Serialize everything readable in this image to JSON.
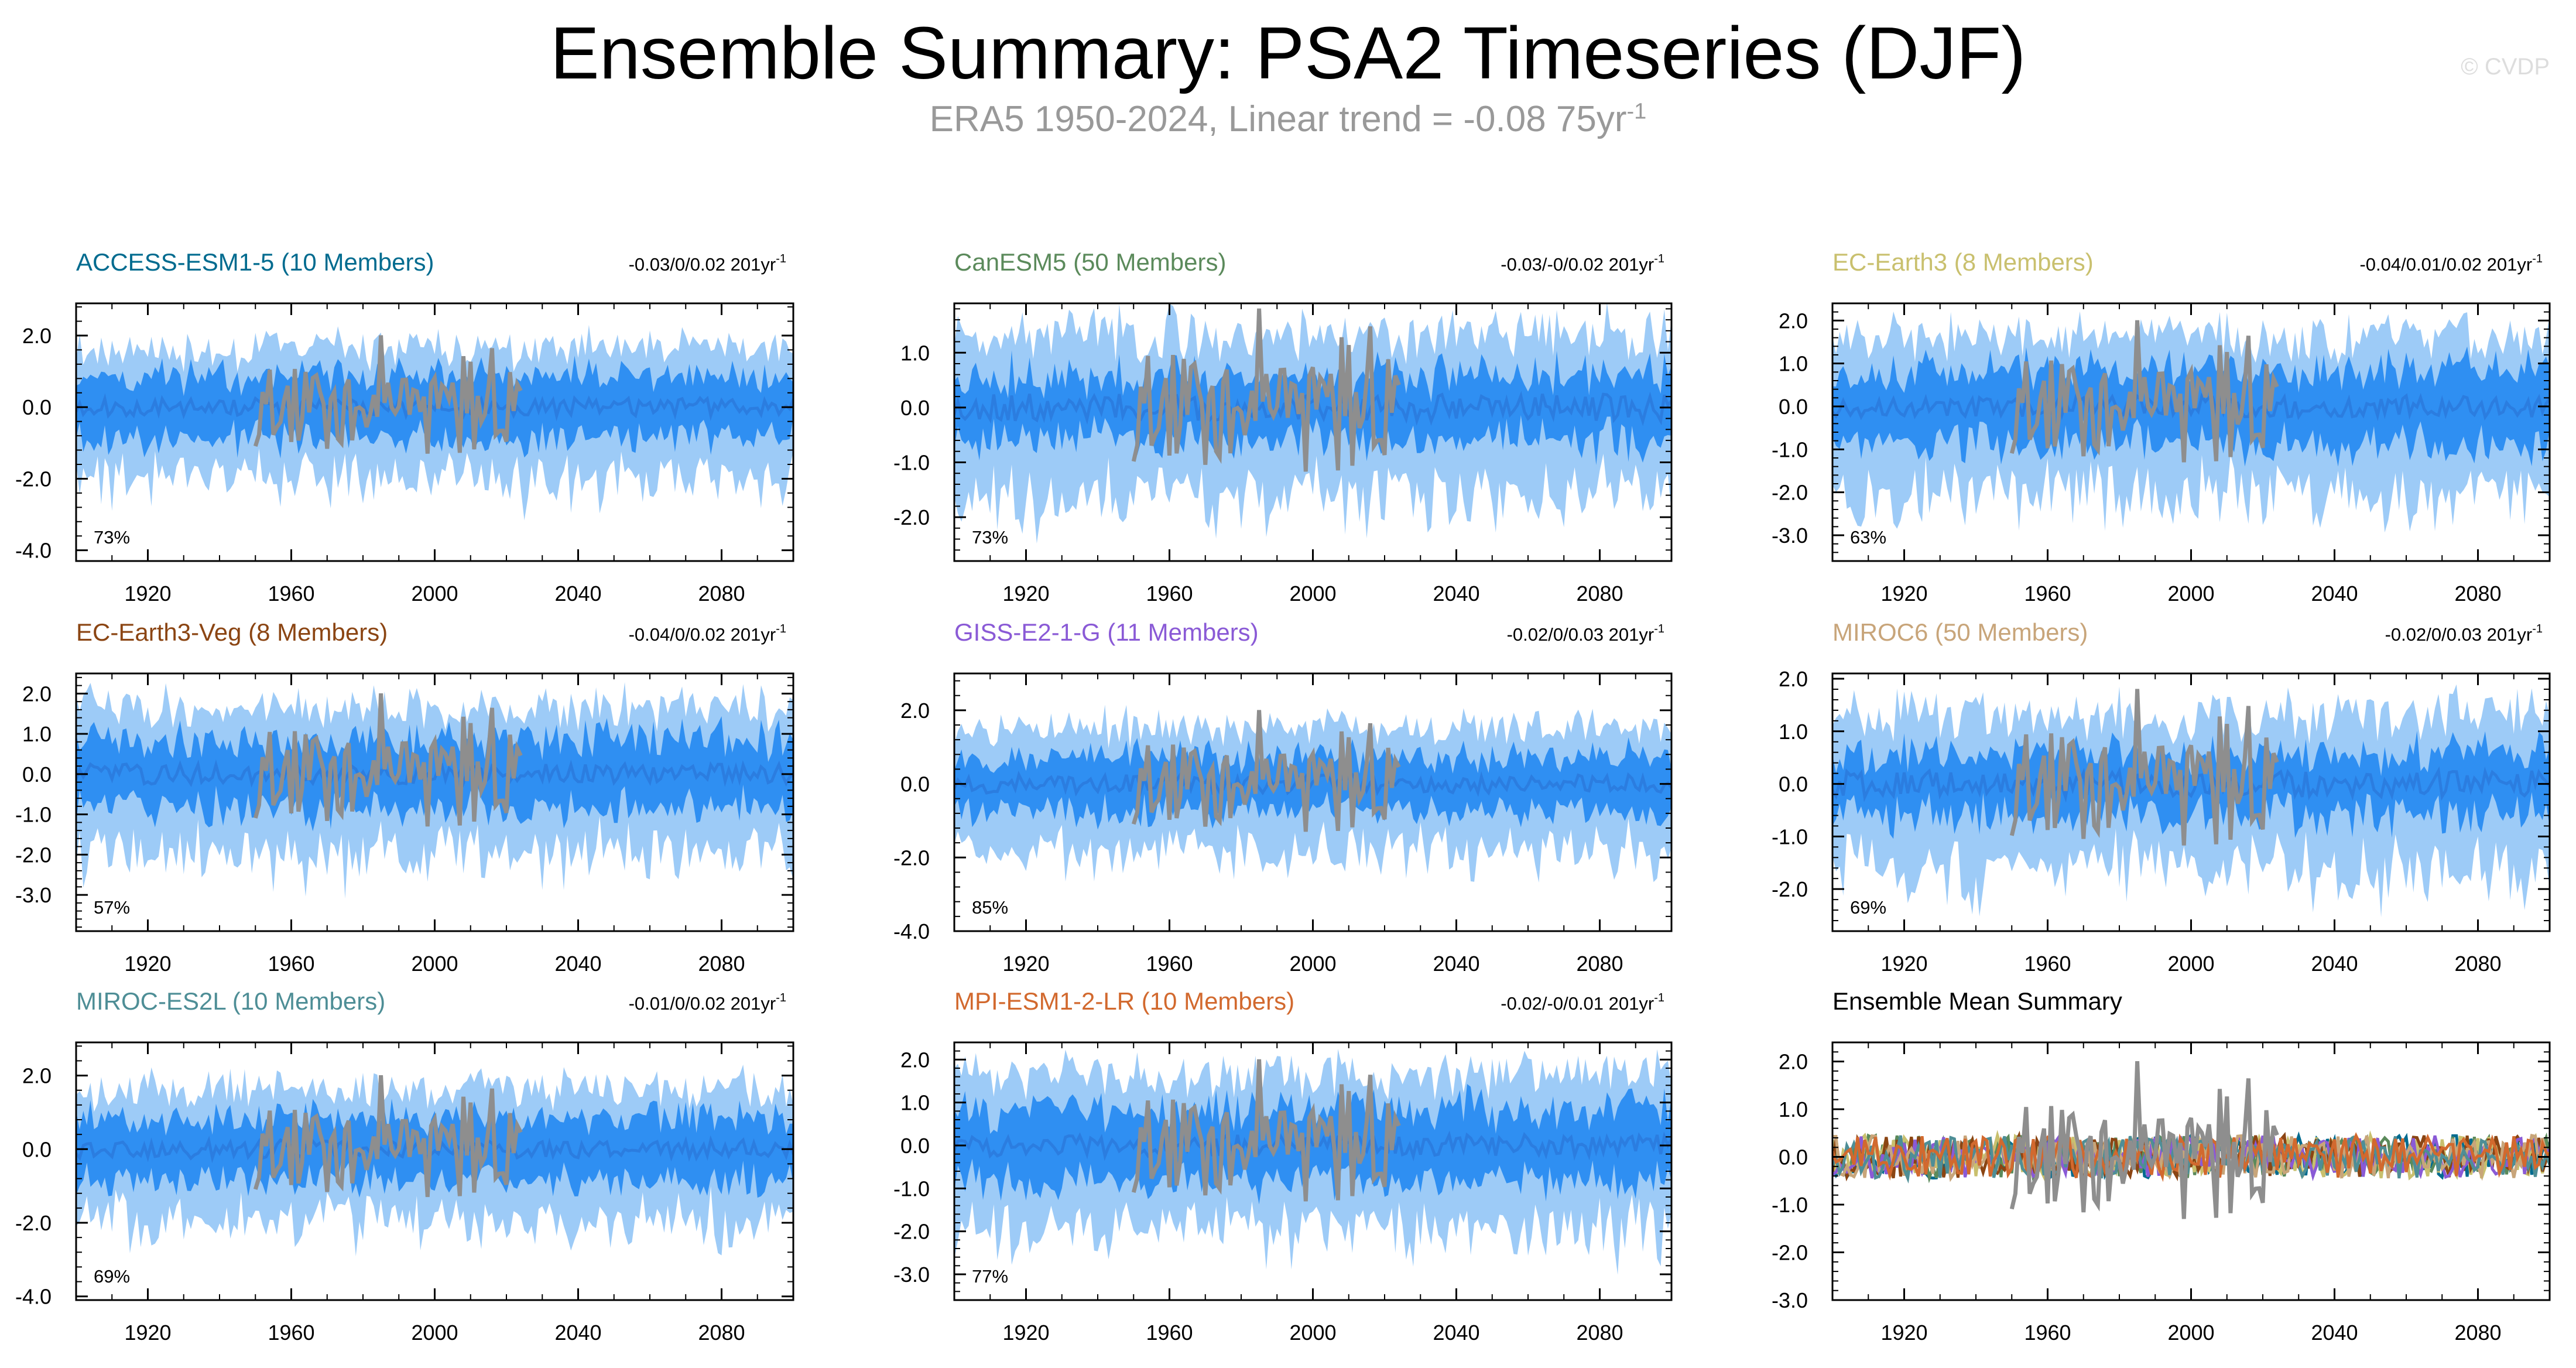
{
  "title": "Ensemble Summary: PSA2 Timeseries (DJF)",
  "subtitle": {
    "text": "ERA5 1950-2024, Linear trend = -0.08 75yr",
    "exponent": "-1"
  },
  "watermark": "© CVDP",
  "colors": {
    "outer_band": "#9dcbf7",
    "inner_band": "#2f8ff2",
    "mean_line": "#2b7de0",
    "observation": "#8e8e8e",
    "axis": "#000000"
  },
  "chart_data": [
    {
      "type": "line",
      "title": "ACCESS-ESM1-5 (10 Members)",
      "title_color": "#006b8f",
      "trend": "-0.03/0/0.02 201yr",
      "trend_exponent": "-1",
      "percent": "73%",
      "x_range": [
        1900,
        2100
      ],
      "ylim": [
        -4.3,
        2.9
      ],
      "y_ticks": [
        "2.0",
        "0.0",
        "-2.0",
        "-4.0"
      ],
      "y_tick_values": [
        2,
        0,
        -2,
        -4
      ],
      "x_ticks": [
        "1920",
        "1960",
        "2000",
        "2040",
        "2080"
      ],
      "outer_half_width": 1.6,
      "inner_half_width": 0.8,
      "obs_amplitude": 1.0,
      "seed": 11
    },
    {
      "type": "line",
      "title": "CanESM5 (50 Members)",
      "title_color": "#5b8a5b",
      "trend": "-0.03/-0/0.02 201yr",
      "trend_exponent": "-1",
      "percent": "73%",
      "x_range": [
        1900,
        2100
      ],
      "ylim": [
        -2.8,
        1.9
      ],
      "y_ticks": [
        "1.0",
        "0.0",
        "-1.0",
        "-2.0"
      ],
      "y_tick_values": [
        1,
        0,
        -1,
        -2
      ],
      "x_ticks": [
        "1920",
        "1960",
        "2000",
        "2040",
        "2080"
      ],
      "outer_half_width": 1.3,
      "inner_half_width": 0.55,
      "obs_amplitude": 0.9,
      "seed": 23
    },
    {
      "type": "line",
      "title": "EC-Earth3 (8 Members)",
      "title_color": "#c9c06e",
      "trend": "-0.04/0.01/0.02 201yr",
      "trend_exponent": "-1",
      "percent": "63%",
      "x_range": [
        1900,
        2100
      ],
      "ylim": [
        -3.6,
        2.4
      ],
      "y_ticks": [
        "2.0",
        "1.0",
        "0.0",
        "-1.0",
        "-2.0",
        "-3.0"
      ],
      "y_tick_values": [
        2,
        1,
        0,
        -1,
        -2,
        -3
      ],
      "x_ticks": [
        "1920",
        "1960",
        "2000",
        "2040",
        "2080"
      ],
      "outer_half_width": 1.6,
      "inner_half_width": 0.8,
      "obs_amplitude": 1.0,
      "seed": 37
    },
    {
      "type": "line",
      "title": "EC-Earth3-Veg (8 Members)",
      "title_color": "#8b4513",
      "trend": "-0.04/0/0.02 201yr",
      "trend_exponent": "-1",
      "percent": "57%",
      "x_range": [
        1900,
        2100
      ],
      "ylim": [
        -3.9,
        2.5
      ],
      "y_ticks": [
        "2.0",
        "1.0",
        "0.0",
        "-1.0",
        "-2.0",
        "-3.0"
      ],
      "y_tick_values": [
        2,
        1,
        0,
        -1,
        -2,
        -3
      ],
      "x_ticks": [
        "1920",
        "1960",
        "2000",
        "2040",
        "2080"
      ],
      "outer_half_width": 1.6,
      "inner_half_width": 0.8,
      "obs_amplitude": 1.0,
      "seed": 41
    },
    {
      "type": "line",
      "title": "GISS-E2-1-G (11 Members)",
      "title_color": "#8a5ad6",
      "trend": "-0.02/0/0.03 201yr",
      "trend_exponent": "-1",
      "percent": "85%",
      "x_range": [
        1900,
        2100
      ],
      "ylim": [
        -4.0,
        3.0
      ],
      "y_ticks": [
        "2.0",
        "0.0",
        "-2.0",
        "-4.0"
      ],
      "y_tick_values": [
        2,
        0,
        -2,
        -4
      ],
      "x_ticks": [
        "1920",
        "1960",
        "2000",
        "2040",
        "2080"
      ],
      "outer_half_width": 1.5,
      "inner_half_width": 0.7,
      "obs_amplitude": 1.0,
      "seed": 53
    },
    {
      "type": "line",
      "title": "MIROC6 (50 Members)",
      "title_color": "#c8a57a",
      "trend": "-0.02/0/0.03 201yr",
      "trend_exponent": "-1",
      "percent": "69%",
      "x_range": [
        1900,
        2100
      ],
      "ylim": [
        -2.8,
        2.1
      ],
      "y_ticks": [
        "2.0",
        "1.0",
        "0.0",
        "-1.0",
        "-2.0"
      ],
      "y_tick_values": [
        2,
        1,
        0,
        -1,
        -2
      ],
      "x_ticks": [
        "1920",
        "1960",
        "2000",
        "2040",
        "2080"
      ],
      "outer_half_width": 1.3,
      "inner_half_width": 0.55,
      "obs_amplitude": 0.9,
      "seed": 67
    },
    {
      "type": "line",
      "title": "MIROC-ES2L (10 Members)",
      "title_color": "#4e8e96",
      "trend": "-0.01/0/0.02 201yr",
      "trend_exponent": "-1",
      "percent": "69%",
      "x_range": [
        1900,
        2100
      ],
      "ylim": [
        -4.1,
        2.9
      ],
      "y_ticks": [
        "2.0",
        "0.0",
        "-2.0",
        "-4.0"
      ],
      "y_tick_values": [
        2,
        0,
        -2,
        -4
      ],
      "x_ticks": [
        "1920",
        "1960",
        "2000",
        "2040",
        "2080"
      ],
      "outer_half_width": 1.6,
      "inner_half_width": 0.8,
      "obs_amplitude": 1.0,
      "seed": 79
    },
    {
      "type": "line",
      "title": "MPI-ESM1-2-LR (10 Members)",
      "title_color": "#d2692e",
      "trend": "-0.02/-0/0.01 201yr",
      "trend_exponent": "-1",
      "percent": "77%",
      "x_range": [
        1900,
        2100
      ],
      "ylim": [
        -3.6,
        2.4
      ],
      "y_ticks": [
        "2.0",
        "1.0",
        "0.0",
        "-1.0",
        "-2.0",
        "-3.0"
      ],
      "y_tick_values": [
        2,
        1,
        0,
        -1,
        -2,
        -3
      ],
      "x_ticks": [
        "1920",
        "1960",
        "2000",
        "2040",
        "2080"
      ],
      "outer_half_width": 1.6,
      "inner_half_width": 0.8,
      "obs_amplitude": 1.0,
      "seed": 83
    },
    {
      "type": "line",
      "title": "Ensemble Mean Summary",
      "title_color": "#000000",
      "summary": true,
      "x_range": [
        1900,
        2100
      ],
      "ylim": [
        -3.0,
        2.4
      ],
      "y_ticks": [
        "2.0",
        "1.0",
        "0.0",
        "-1.0",
        "-2.0",
        "-3.0"
      ],
      "y_tick_values": [
        2,
        1,
        0,
        -1,
        -2,
        -3
      ],
      "x_ticks": [
        "1920",
        "1960",
        "2000",
        "2040",
        "2080"
      ],
      "series_colors": [
        "#006b8f",
        "#5b8a5b",
        "#c9c06e",
        "#8b4513",
        "#8a5ad6",
        "#c8a57a",
        "#4e8e96",
        "#d2692e"
      ],
      "obs_amplitude": 1.0,
      "seed": 97
    }
  ]
}
